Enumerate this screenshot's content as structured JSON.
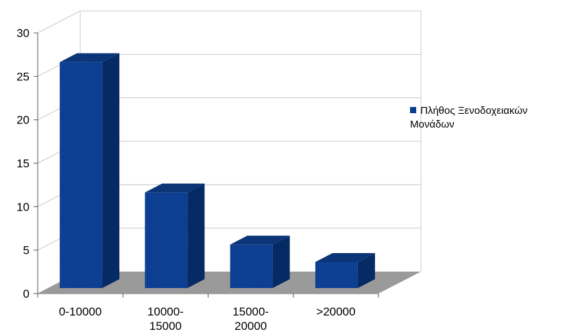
{
  "chart_data": {
    "type": "bar",
    "categories": [
      "0-10000",
      "10000-\n15000",
      "15000-\n20000",
      ">20000"
    ],
    "series": [
      {
        "name": "Πλήθος Ξενοδοχειακών Μονάδων",
        "values": [
          26,
          11,
          5,
          3
        ]
      }
    ],
    "ylim": [
      0,
      30
    ],
    "yticks": [
      "0",
      "5",
      "10",
      "15",
      "20",
      "25",
      "30"
    ],
    "grid": true,
    "legend": "right",
    "three_d": true,
    "colors": {
      "bar_front": "#0a3d91",
      "bar_side": "#062a63",
      "bar_top": "#0b3576",
      "floor": "#9a9a9a",
      "grid": "#c8c8c8"
    }
  }
}
